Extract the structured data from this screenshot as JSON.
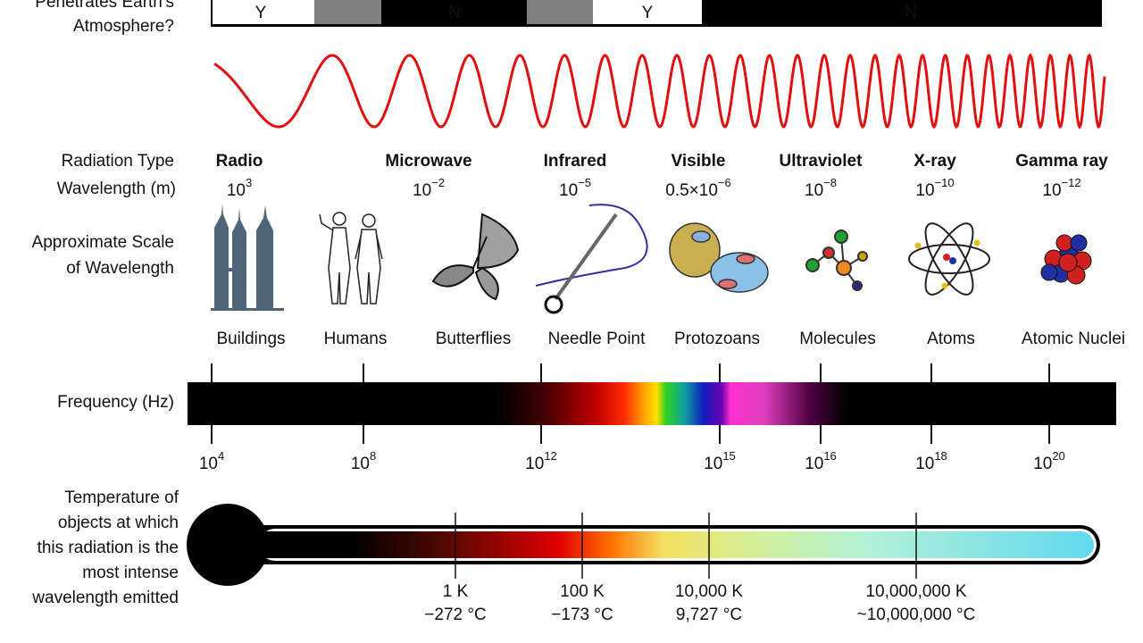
{
  "atmosphere": {
    "label_lines": [
      "Penetrates Earth's",
      "Atmosphere?"
    ],
    "segments": [
      "Y",
      "N",
      "Y",
      "N"
    ]
  },
  "row_labels": {
    "radiation_type": "Radiation Type",
    "wavelength": "Wavelength (m)",
    "scale": [
      "Approximate Scale",
      "of Wavelength"
    ],
    "frequency": "Frequency (Hz)",
    "temperature": [
      "Temperature of",
      "objects at which",
      "this radiation is the",
      "most intense",
      "wavelength emitted"
    ]
  },
  "radiation_types": [
    {
      "name": "Radio",
      "wavelength": {
        "base": "10",
        "exp": "3"
      }
    },
    {
      "name": "Microwave",
      "wavelength": {
        "base": "10",
        "exp": "−2"
      }
    },
    {
      "name": "Infrared",
      "wavelength": {
        "base": "10",
        "exp": "−5"
      }
    },
    {
      "name": "Visible",
      "wavelength": {
        "base": "0.5×10",
        "exp": "−6"
      }
    },
    {
      "name": "Ultraviolet",
      "wavelength": {
        "base": "10",
        "exp": "−8"
      }
    },
    {
      "name": "X-ray",
      "wavelength": {
        "base": "10",
        "exp": "−10"
      }
    },
    {
      "name": "Gamma ray",
      "wavelength": {
        "base": "10",
        "exp": "−12"
      }
    }
  ],
  "scale_examples": [
    "Buildings",
    "Humans",
    "Butterflies",
    "Needle Point",
    "Protozoans",
    "Molecules",
    "Atoms",
    "Atomic Nuclei"
  ],
  "frequency_ticks": [
    {
      "base": "10",
      "exp": "4"
    },
    {
      "base": "10",
      "exp": "8"
    },
    {
      "base": "10",
      "exp": "12"
    },
    {
      "base": "10",
      "exp": "15"
    },
    {
      "base": "10",
      "exp": "16"
    },
    {
      "base": "10",
      "exp": "18"
    },
    {
      "base": "10",
      "exp": "20"
    }
  ],
  "temperatures": [
    {
      "kelvin": "1 K",
      "celsius": "−272 °C"
    },
    {
      "kelvin": "100 K",
      "celsius": "−173 °C"
    },
    {
      "kelvin": "10,000 K",
      "celsius": "9,727 °C"
    },
    {
      "kelvin": "10,000,000 K",
      "celsius": "~10,000,000 °C"
    }
  ]
}
